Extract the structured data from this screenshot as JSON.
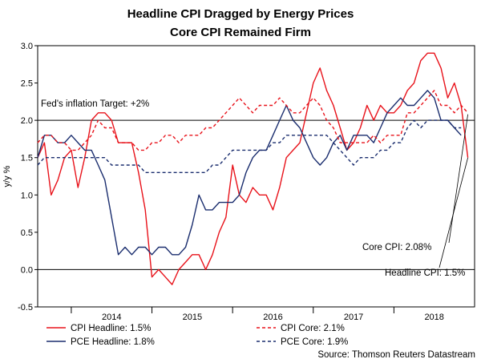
{
  "chart_data": {
    "type": "line",
    "title": "Headline CPI Dragged by Energy Prices",
    "subtitle": "Core CPI Remained Firm",
    "ylabel": "y/y %",
    "xlabel": "",
    "ylim": [
      -0.5,
      3.0
    ],
    "yticks": [
      "3.0",
      "2.5",
      "2.0",
      "1.5",
      "1.0",
      "0.5",
      "0.0",
      "-0.5"
    ],
    "xrange": [
      "2013-08",
      "2019-01"
    ],
    "year_ticks": [
      "2014",
      "2015",
      "2016",
      "2017",
      "2018"
    ],
    "reference_lines": [
      {
        "y": 2.0,
        "label": "Fed's inflation Target: +2%"
      },
      {
        "y": 0.0,
        "label": ""
      }
    ],
    "annotations": [
      {
        "text": "Core CPI: 2.08%",
        "target": [
          "2018-12",
          2.08
        ]
      },
      {
        "text": "Headline CPI: 1.5%",
        "target": [
          "2018-12",
          1.5
        ]
      }
    ],
    "legend_position": "bottom",
    "source": "Source: Thomson Reuters Datastream",
    "series": [
      {
        "name": "CPI Headline: 1.5%",
        "color": "#e8121a",
        "dash": "solid",
        "x": [
          "2013-08",
          "2013-09",
          "2013-10",
          "2013-11",
          "2013-12",
          "2014-01",
          "2014-02",
          "2014-03",
          "2014-04",
          "2014-05",
          "2014-06",
          "2014-07",
          "2014-08",
          "2014-09",
          "2014-10",
          "2014-11",
          "2014-12",
          "2015-01",
          "2015-02",
          "2015-03",
          "2015-04",
          "2015-05",
          "2015-06",
          "2015-07",
          "2015-08",
          "2015-09",
          "2015-10",
          "2015-11",
          "2015-12",
          "2016-01",
          "2016-02",
          "2016-03",
          "2016-04",
          "2016-05",
          "2016-06",
          "2016-07",
          "2016-08",
          "2016-09",
          "2016-10",
          "2016-11",
          "2016-12",
          "2017-01",
          "2017-02",
          "2017-03",
          "2017-04",
          "2017-05",
          "2017-06",
          "2017-07",
          "2017-08",
          "2017-09",
          "2017-10",
          "2017-11",
          "2017-12",
          "2018-01",
          "2018-02",
          "2018-03",
          "2018-04",
          "2018-05",
          "2018-06",
          "2018-07",
          "2018-08",
          "2018-09",
          "2018-10",
          "2018-11",
          "2018-12"
        ],
        "values": [
          1.5,
          1.7,
          1.0,
          1.2,
          1.5,
          1.6,
          1.1,
          1.5,
          2.0,
          2.1,
          2.1,
          2.0,
          1.7,
          1.7,
          1.7,
          1.3,
          0.8,
          -0.1,
          0.0,
          -0.1,
          -0.2,
          0.0,
          0.1,
          0.2,
          0.2,
          0.0,
          0.2,
          0.5,
          0.7,
          1.4,
          1.0,
          0.9,
          1.1,
          1.0,
          1.0,
          0.8,
          1.1,
          1.5,
          1.6,
          1.7,
          2.1,
          2.5,
          2.7,
          2.4,
          2.2,
          1.9,
          1.6,
          1.7,
          1.9,
          2.2,
          2.0,
          2.2,
          2.1,
          2.1,
          2.2,
          2.4,
          2.5,
          2.8,
          2.9,
          2.9,
          2.7,
          2.3,
          2.5,
          2.2,
          1.5
        ]
      },
      {
        "name": "PCE Headline: 1.8%",
        "color": "#1a2d6e",
        "dash": "solid",
        "x": [
          "2013-08",
          "2013-09",
          "2013-10",
          "2013-11",
          "2013-12",
          "2014-01",
          "2014-02",
          "2014-03",
          "2014-04",
          "2014-05",
          "2014-06",
          "2014-07",
          "2014-08",
          "2014-09",
          "2014-10",
          "2014-11",
          "2014-12",
          "2015-01",
          "2015-02",
          "2015-03",
          "2015-04",
          "2015-05",
          "2015-06",
          "2015-07",
          "2015-08",
          "2015-09",
          "2015-10",
          "2015-11",
          "2015-12",
          "2016-01",
          "2016-02",
          "2016-03",
          "2016-04",
          "2016-05",
          "2016-06",
          "2016-07",
          "2016-08",
          "2016-09",
          "2016-10",
          "2016-11",
          "2016-12",
          "2017-01",
          "2017-02",
          "2017-03",
          "2017-04",
          "2017-05",
          "2017-06",
          "2017-07",
          "2017-08",
          "2017-09",
          "2017-10",
          "2017-11",
          "2017-12",
          "2018-01",
          "2018-02",
          "2018-03",
          "2018-04",
          "2018-05",
          "2018-06",
          "2018-07",
          "2018-08",
          "2018-09",
          "2018-10",
          "2018-11"
        ],
        "values": [
          1.5,
          1.8,
          1.8,
          1.7,
          1.7,
          1.8,
          1.7,
          1.6,
          1.6,
          1.4,
          1.2,
          0.7,
          0.2,
          0.3,
          0.2,
          0.3,
          0.3,
          0.2,
          0.3,
          0.3,
          0.2,
          0.2,
          0.3,
          0.6,
          1.0,
          0.8,
          0.8,
          0.9,
          0.9,
          0.9,
          1.0,
          1.3,
          1.5,
          1.6,
          1.6,
          1.8,
          2.0,
          2.2,
          2.0,
          1.9,
          1.7,
          1.5,
          1.4,
          1.5,
          1.7,
          1.8,
          1.6,
          1.8,
          1.8,
          1.8,
          1.7,
          1.9,
          2.1,
          2.2,
          2.3,
          2.2,
          2.2,
          2.3,
          2.4,
          2.3,
          2.0,
          2.0,
          1.9,
          1.8
        ]
      },
      {
        "name": "CPI Core: 2.1%",
        "color": "#e8121a",
        "dash": "dashed",
        "x": [
          "2013-08",
          "2013-09",
          "2013-10",
          "2013-11",
          "2013-12",
          "2014-01",
          "2014-02",
          "2014-03",
          "2014-04",
          "2014-05",
          "2014-06",
          "2014-07",
          "2014-08",
          "2014-09",
          "2014-10",
          "2014-11",
          "2014-12",
          "2015-01",
          "2015-02",
          "2015-03",
          "2015-04",
          "2015-05",
          "2015-06",
          "2015-07",
          "2015-08",
          "2015-09",
          "2015-10",
          "2015-11",
          "2015-12",
          "2016-01",
          "2016-02",
          "2016-03",
          "2016-04",
          "2016-05",
          "2016-06",
          "2016-07",
          "2016-08",
          "2016-09",
          "2016-10",
          "2016-11",
          "2016-12",
          "2017-01",
          "2017-02",
          "2017-03",
          "2017-04",
          "2017-05",
          "2017-06",
          "2017-07",
          "2017-08",
          "2017-09",
          "2017-10",
          "2017-11",
          "2017-12",
          "2018-01",
          "2018-02",
          "2018-03",
          "2018-04",
          "2018-05",
          "2018-06",
          "2018-07",
          "2018-08",
          "2018-09",
          "2018-10",
          "2018-11",
          "2018-12"
        ],
        "values": [
          1.7,
          1.8,
          1.8,
          1.7,
          1.7,
          1.6,
          1.6,
          1.7,
          1.8,
          2.0,
          1.9,
          1.9,
          1.7,
          1.7,
          1.7,
          1.6,
          1.6,
          1.7,
          1.7,
          1.8,
          1.8,
          1.7,
          1.8,
          1.8,
          1.8,
          1.9,
          1.9,
          2.0,
          2.1,
          2.2,
          2.3,
          2.2,
          2.1,
          2.2,
          2.2,
          2.2,
          2.3,
          2.2,
          2.1,
          2.1,
          2.2,
          2.3,
          2.2,
          2.0,
          1.9,
          1.7,
          1.7,
          1.7,
          1.7,
          1.7,
          1.8,
          1.7,
          1.8,
          1.8,
          1.8,
          2.1,
          2.1,
          2.2,
          2.3,
          2.4,
          2.2,
          2.2,
          2.1,
          2.2,
          2.1
        ]
      },
      {
        "name": "PCE Core: 1.9%",
        "color": "#1a2d6e",
        "dash": "dashed",
        "x": [
          "2013-08",
          "2013-09",
          "2013-10",
          "2013-11",
          "2013-12",
          "2014-01",
          "2014-02",
          "2014-03",
          "2014-04",
          "2014-05",
          "2014-06",
          "2014-07",
          "2014-08",
          "2014-09",
          "2014-10",
          "2014-11",
          "2014-12",
          "2015-01",
          "2015-02",
          "2015-03",
          "2015-04",
          "2015-05",
          "2015-06",
          "2015-07",
          "2015-08",
          "2015-09",
          "2015-10",
          "2015-11",
          "2015-12",
          "2016-01",
          "2016-02",
          "2016-03",
          "2016-04",
          "2016-05",
          "2016-06",
          "2016-07",
          "2016-08",
          "2016-09",
          "2016-10",
          "2016-11",
          "2016-12",
          "2017-01",
          "2017-02",
          "2017-03",
          "2017-04",
          "2017-05",
          "2017-06",
          "2017-07",
          "2017-08",
          "2017-09",
          "2017-10",
          "2017-11",
          "2017-12",
          "2018-01",
          "2018-02",
          "2018-03",
          "2018-04",
          "2018-05",
          "2018-06",
          "2018-07",
          "2018-08",
          "2018-09",
          "2018-10",
          "2018-11"
        ],
        "values": [
          1.4,
          1.5,
          1.5,
          1.5,
          1.5,
          1.5,
          1.5,
          1.5,
          1.5,
          1.5,
          1.5,
          1.4,
          1.4,
          1.4,
          1.4,
          1.4,
          1.3,
          1.3,
          1.3,
          1.3,
          1.3,
          1.3,
          1.3,
          1.3,
          1.3,
          1.3,
          1.4,
          1.4,
          1.5,
          1.6,
          1.6,
          1.6,
          1.6,
          1.6,
          1.6,
          1.7,
          1.7,
          1.8,
          1.8,
          1.8,
          1.8,
          1.8,
          1.8,
          1.8,
          1.7,
          1.6,
          1.5,
          1.4,
          1.5,
          1.5,
          1.5,
          1.6,
          1.6,
          1.7,
          1.7,
          1.9,
          2.0,
          1.9,
          2.0,
          2.0,
          2.0,
          2.0,
          1.9,
          1.9
        ]
      }
    ]
  }
}
